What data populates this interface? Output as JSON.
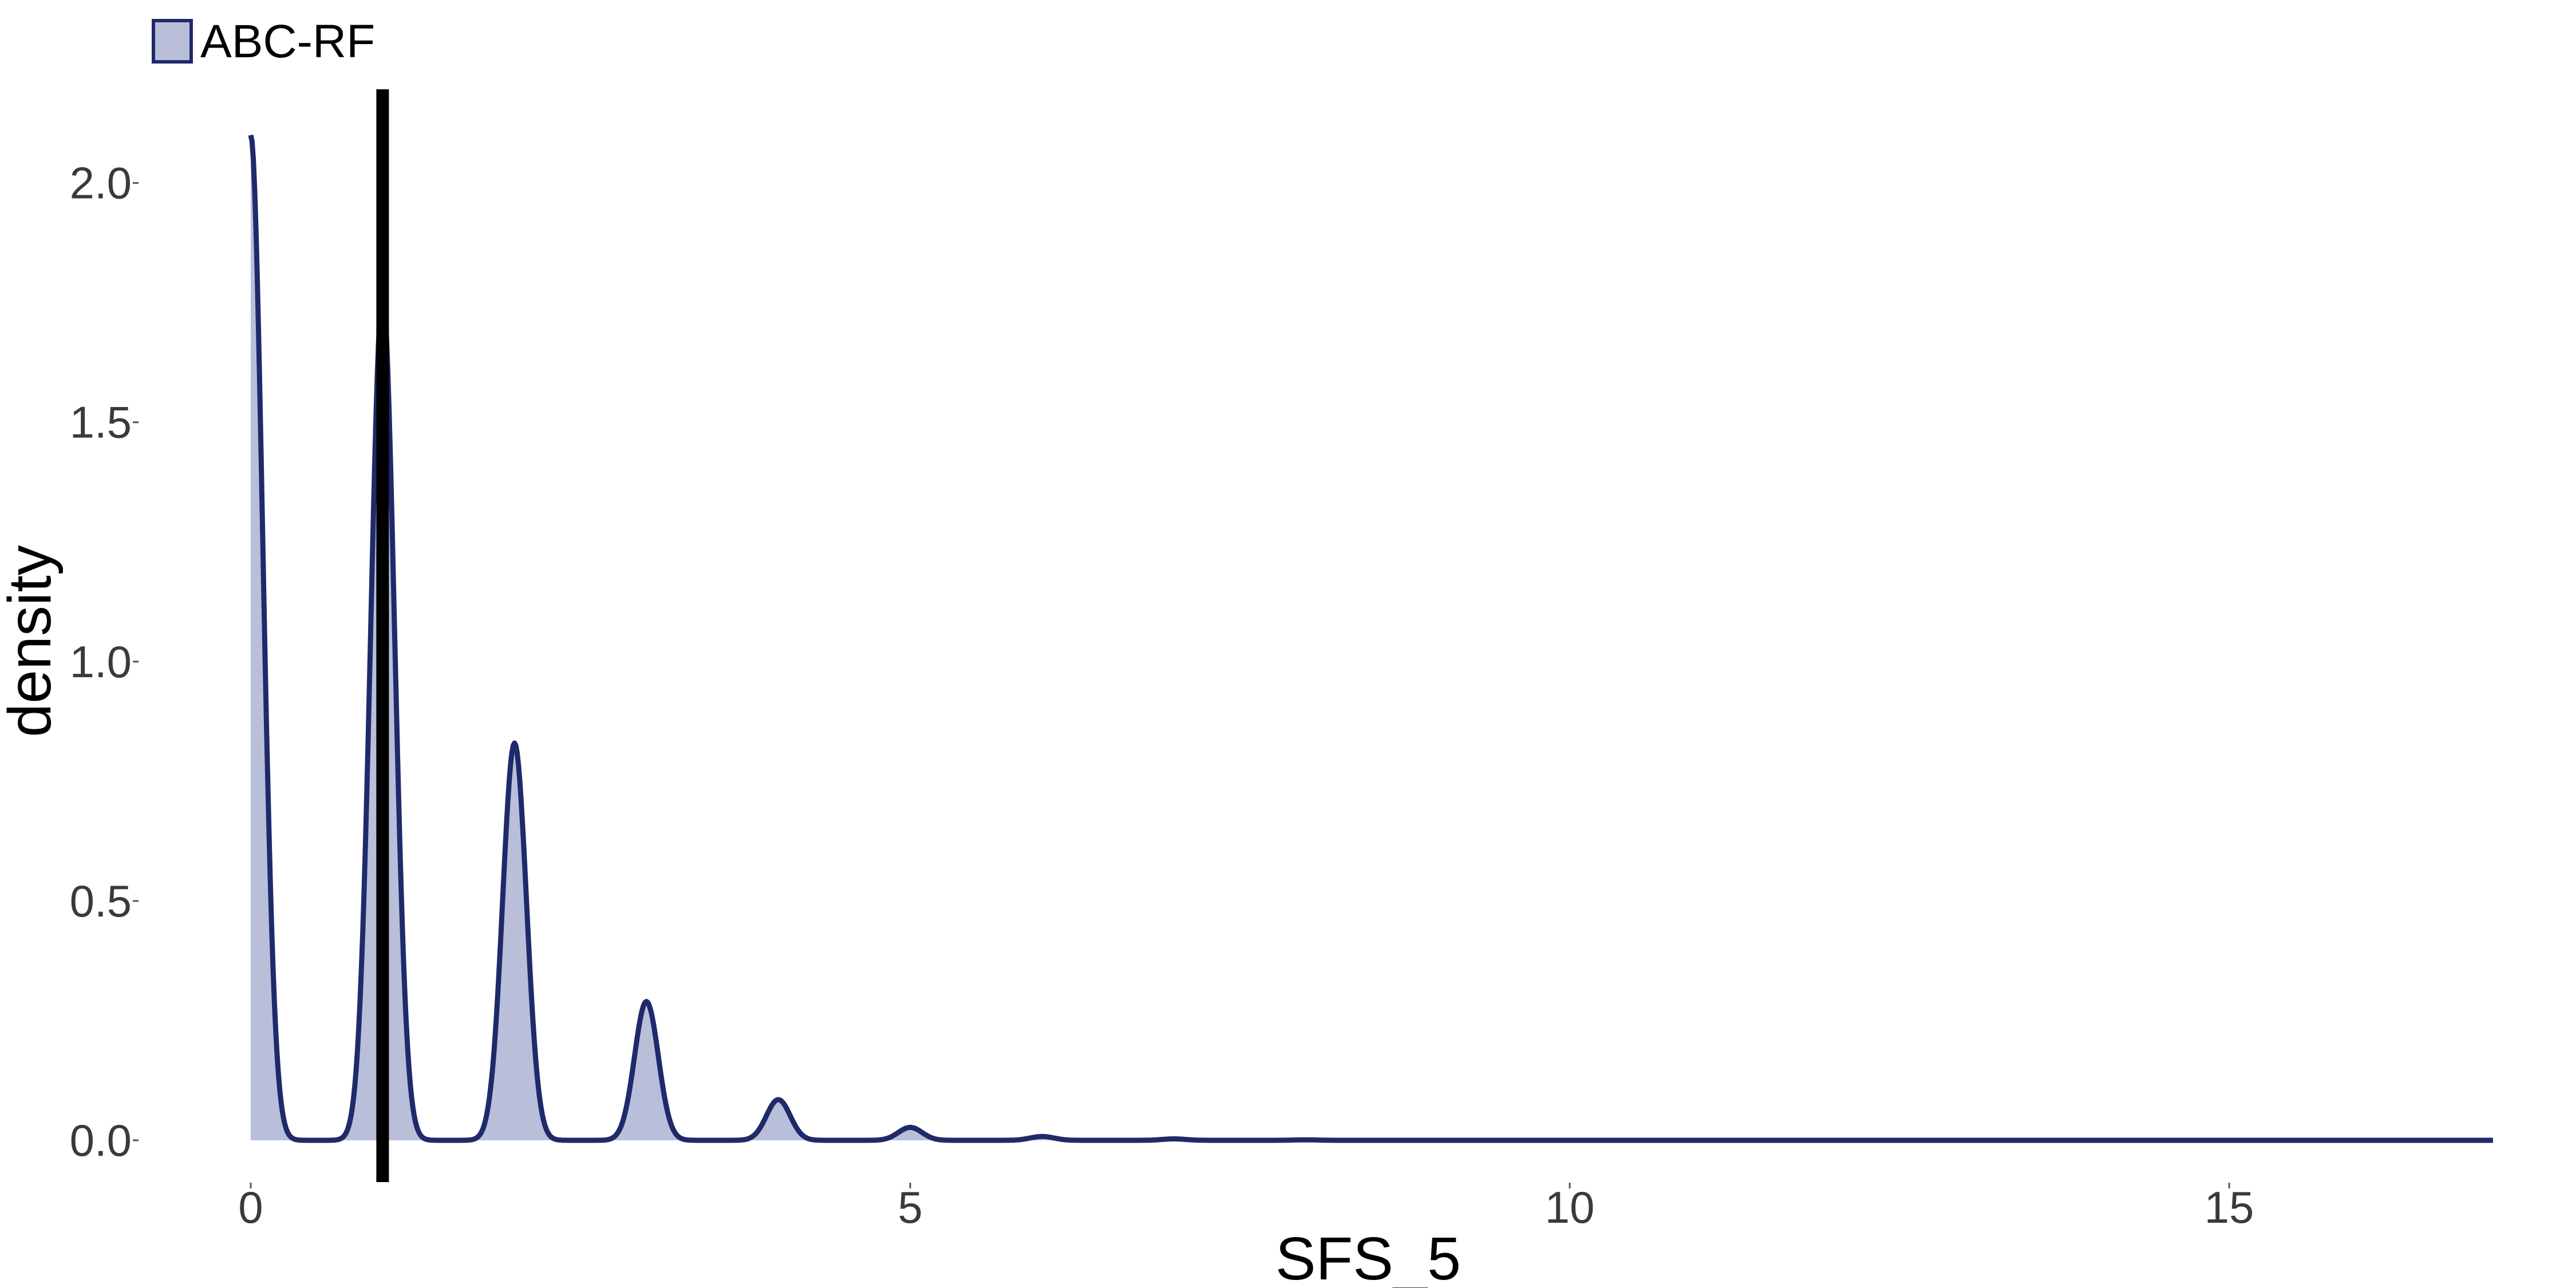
{
  "chart_data": {
    "type": "area",
    "title": "",
    "xlabel": "SFS_5",
    "ylabel": "density",
    "xlim": [
      0,
      17
    ],
    "ylim": [
      0,
      2.1
    ],
    "x_ticks": [
      0,
      5,
      10,
      15
    ],
    "x_tick_labels": [
      "0",
      "5",
      "10",
      "15"
    ],
    "y_ticks": [
      0,
      0.5,
      1.0,
      1.5,
      2.0
    ],
    "y_tick_labels": [
      "0.0",
      "0.5",
      "1.0",
      "1.5",
      "2.0"
    ],
    "grid": false,
    "legend_position": "top-left",
    "reference_line": {
      "x": 1,
      "color": "#000000"
    },
    "series": [
      {
        "name": "ABC-RF",
        "line_color": "#1f2a6b",
        "fill_color": "#b9bfd9",
        "peaks": [
          {
            "x": 0,
            "density": 2.1
          },
          {
            "x": 1,
            "density": 1.77
          },
          {
            "x": 2,
            "density": 0.83
          },
          {
            "x": 3,
            "density": 0.29
          },
          {
            "x": 4,
            "density": 0.085
          },
          {
            "x": 5,
            "density": 0.027
          },
          {
            "x": 6,
            "density": 0.008
          },
          {
            "x": 7,
            "density": 0.003
          },
          {
            "x": 8,
            "density": 0.001
          }
        ],
        "peak_width": 0.09
      }
    ]
  }
}
